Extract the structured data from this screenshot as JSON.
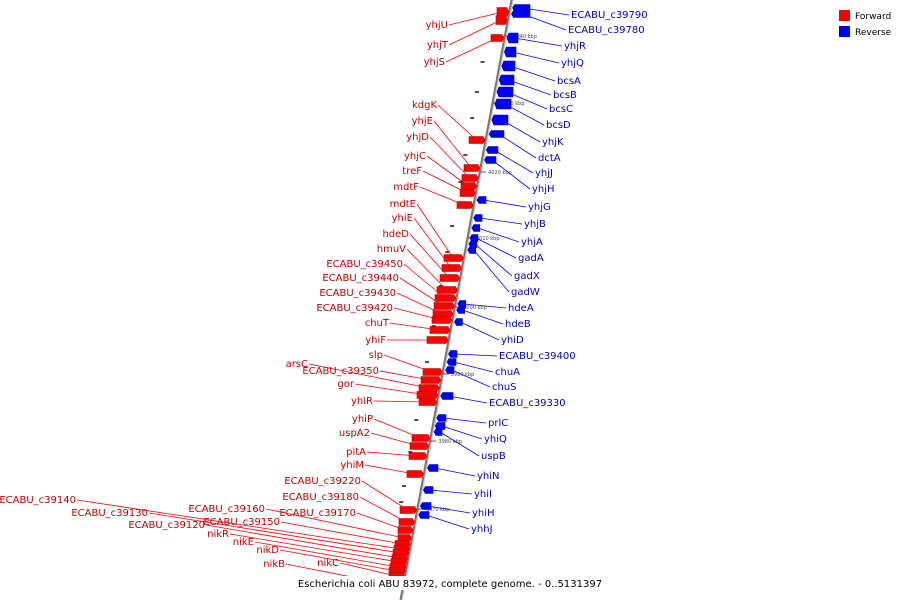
{
  "caption": "Escherichia coli ABU 83972, complete genome. - 0..5131397",
  "legend": [
    {
      "label": "Forward",
      "color": "#ff0000"
    },
    {
      "label": "Reverse",
      "color": "#0000ff"
    }
  ],
  "colors": {
    "forward": "#ff0000",
    "reverse": "#0000ff",
    "axis": "#888888"
  },
  "ticks": [
    "4040 kbp",
    "4030 kbp",
    "4020 kbp",
    "4010 kbp",
    "4000 kbp",
    "3990 kbp",
    "3980 kbp",
    "3970 kbp",
    "3960 kbp"
  ],
  "forward_genes": [
    "yhjU",
    "yhjT",
    "yhjS",
    "kdgK",
    "yhjE",
    "yhjD",
    "yhjC",
    "treF",
    "mdtF",
    "mdtE",
    "yhiE",
    "hdeD",
    "hmuV",
    "ECABU_c39450",
    "ECABU_c39440",
    "ECABU_c39430",
    "ECABU_c39420",
    "chuT",
    "yhiF",
    "slp",
    "arsC",
    "ECABU_c39350",
    "gor",
    "yhiR",
    "yhiP",
    "uspA2",
    "pitA",
    "yhiM",
    "ECABU_c39220",
    "ECABU_c39180",
    "ECABU_c39170",
    "ECABU_c39160",
    "ECABU_c39150",
    "ECABU_c39140",
    "ECABU_c39130",
    "ECABU_c39120",
    "nikR",
    "nikE",
    "nikD",
    "nikC",
    "nikB"
  ],
  "reverse_genes": [
    "ECABU_c39790",
    "ECABU_c39780",
    "yhjR",
    "yhjQ",
    "bcsA",
    "bcsB",
    "bcsC",
    "bcsD",
    "yhjK",
    "dctA",
    "yhjJ",
    "yhjH",
    "yhjG",
    "yhjB",
    "yhjA",
    "gadA",
    "gadX",
    "gadW",
    "hdeA",
    "hdeB",
    "yhiD",
    "ECABU_c39400",
    "chuA",
    "chuS",
    "ECABU_c39330",
    "prlC",
    "yhiQ",
    "uspB",
    "yhiN",
    "yhiI",
    "yhiH",
    "yhhJ"
  ]
}
